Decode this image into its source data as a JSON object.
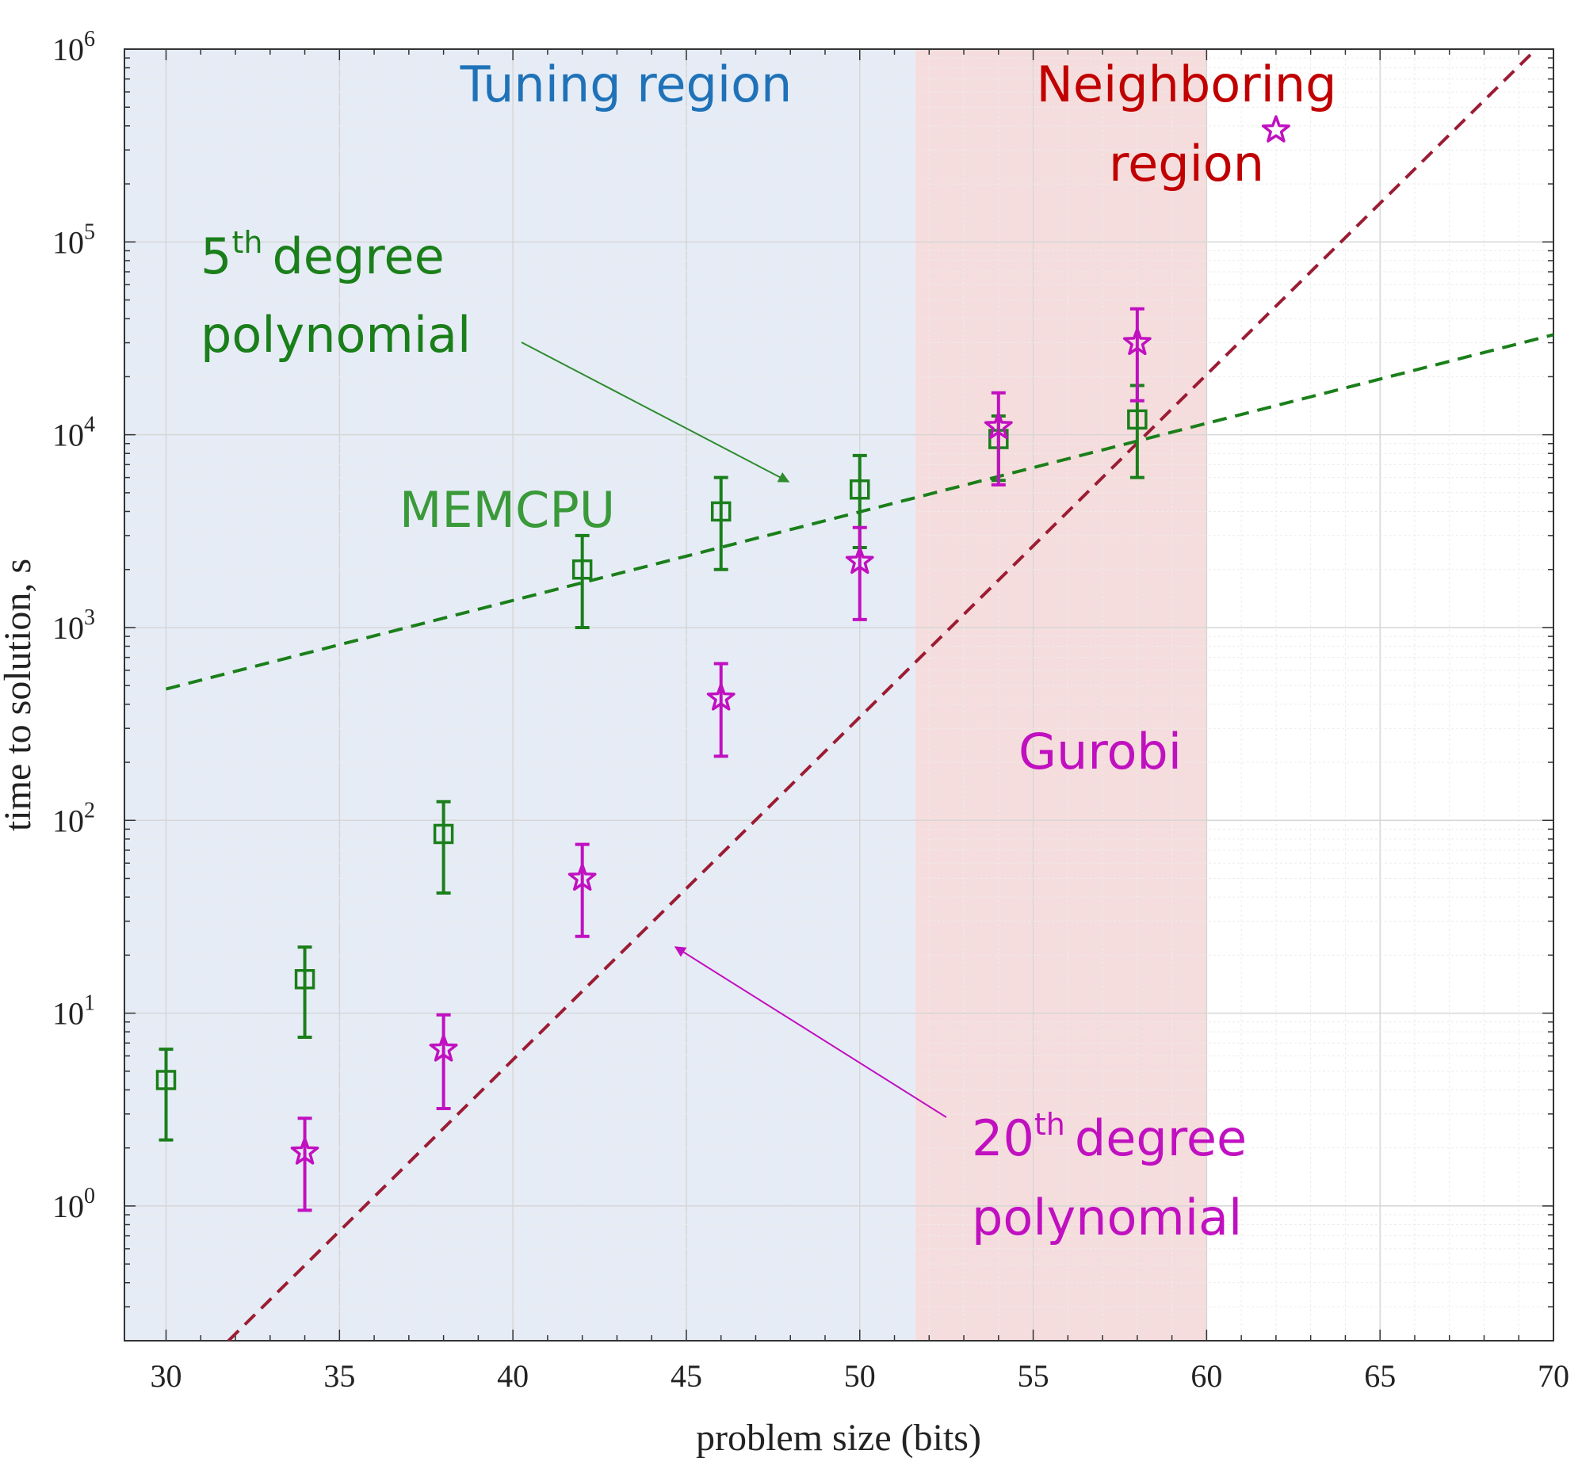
{
  "chart_data": {
    "type": "scatter",
    "xlabel": "problem size (bits)",
    "ylabel": "time to solution, s",
    "xlim": [
      28.8,
      70
    ],
    "ylim": [
      0.2,
      1000000
    ],
    "yscale": "log",
    "grid": true,
    "x_ticks": [
      "30",
      "35",
      "40",
      "45",
      "50",
      "55",
      "60",
      "65",
      "70"
    ],
    "y_ticks": [
      {
        "base": "10",
        "exp": "0"
      },
      {
        "base": "10",
        "exp": "1"
      },
      {
        "base": "10",
        "exp": "2"
      },
      {
        "base": "10",
        "exp": "3"
      },
      {
        "base": "10",
        "exp": "4"
      },
      {
        "base": "10",
        "exp": "5"
      },
      {
        "base": "10",
        "exp": "6"
      }
    ],
    "regions": [
      {
        "label": "Tuning region",
        "x_range": [
          28.8,
          51.6
        ],
        "color": "#e6ecf6",
        "label_color": "#1f72b8"
      },
      {
        "label_lines": [
          "Neighboring",
          "region"
        ],
        "x_range": [
          51.6,
          60
        ],
        "color": "#f6dddd",
        "label_color": "#c00000"
      }
    ],
    "series": [
      {
        "name": "MEMCPU",
        "marker": "square",
        "color": "#1a7f1a",
        "label_color": "#3a9a3a",
        "points": [
          {
            "x": 30,
            "y": 4.5,
            "ylo": 2.2,
            "yhi": 6.5
          },
          {
            "x": 34,
            "y": 15,
            "ylo": 7.5,
            "yhi": 22
          },
          {
            "x": 38,
            "y": 85,
            "ylo": 42,
            "yhi": 125
          },
          {
            "x": 42,
            "y": 2000,
            "ylo": 1000,
            "yhi": 3000
          },
          {
            "x": 46,
            "y": 4000,
            "ylo": 2000,
            "yhi": 6000
          },
          {
            "x": 50,
            "y": 5200,
            "ylo": 2600,
            "yhi": 7800
          },
          {
            "x": 54,
            "y": 9500,
            "ylo": 5800,
            "yhi": 12500
          },
          {
            "x": 58,
            "y": 12000,
            "ylo": 6000,
            "yhi": 18000
          }
        ]
      },
      {
        "name": "Gurobi",
        "marker": "star",
        "color": "#c010c0",
        "label_color": "#c010c0",
        "points": [
          {
            "x": 34,
            "y": 1.9,
            "ylo": 0.95,
            "yhi": 2.85
          },
          {
            "x": 38,
            "y": 6.5,
            "ylo": 3.2,
            "yhi": 9.8
          },
          {
            "x": 42,
            "y": 50,
            "ylo": 25,
            "yhi": 75
          },
          {
            "x": 46,
            "y": 430,
            "ylo": 215,
            "yhi": 650
          },
          {
            "x": 50,
            "y": 2200,
            "ylo": 1100,
            "yhi": 3300
          },
          {
            "x": 54,
            "y": 11000,
            "ylo": 5500,
            "yhi": 16500
          },
          {
            "x": 58,
            "y": 30000,
            "ylo": 15000,
            "yhi": 45000
          },
          {
            "x": 62,
            "y": 380000
          }
        ]
      }
    ],
    "fits": [
      {
        "name_lines": [
          "degree",
          "polynomial"
        ],
        "degree_label": "5",
        "degree_suffix": "th",
        "color": "#1a7f1a",
        "label_color": "#1a7f1a",
        "x_range": [
          30,
          70
        ],
        "y_at_start": 480,
        "y_at_end": 33000
      },
      {
        "name_lines": [
          "degree",
          "polynomial"
        ],
        "degree_label": "20",
        "degree_suffix": "th",
        "color": "#9c1c34",
        "label_color": "#c010c0",
        "x_range": [
          31.8,
          69.5
        ],
        "y_at_start": 0.2,
        "y_at_end": 1000000
      }
    ]
  }
}
